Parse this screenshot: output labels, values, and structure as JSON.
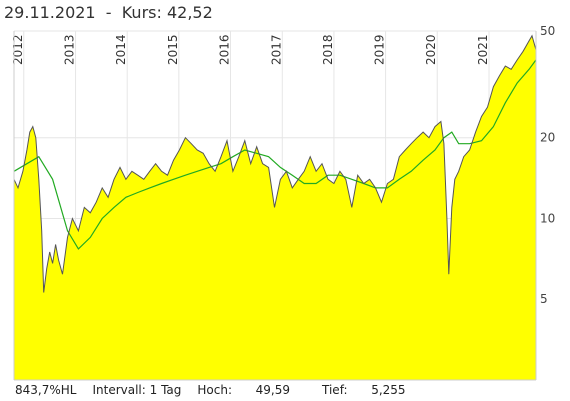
{
  "header": {
    "date": "29.11.2021",
    "separator": "-",
    "kurs_label": "Kurs:",
    "kurs_value": "42,52"
  },
  "footer": {
    "hl": "843,7%HL",
    "intervall": "Intervall: 1 Tag",
    "hoch_label": "Hoch:",
    "hoch_value": "49,59",
    "tief_label": "Tief:",
    "tief_value": "5,255"
  },
  "colors": {
    "area_fill": "#ffff00",
    "price_line": "#555555",
    "moving_average": "#22aa22",
    "grid": "#e6e6e6"
  },
  "chart_data": {
    "type": "area",
    "y_scale": "log",
    "ylim": [
      2.5,
      50
    ],
    "x_range": [
      "2011-10-24",
      "2021-11-29"
    ],
    "year_labels": [
      "2012",
      "2013",
      "2014",
      "2015",
      "2016",
      "2017",
      "2018",
      "2019",
      "2020",
      "2021"
    ],
    "y_ticks": [
      50,
      20,
      10,
      5
    ],
    "y_tick_labels": [
      "50",
      "20",
      "10",
      "5"
    ],
    "grid": true,
    "series": [
      {
        "role": "price",
        "x": [
          "2011-10-24",
          "2011-11-21",
          "2011-12-26",
          "2012-01-23",
          "2012-02-13",
          "2012-03-05",
          "2012-03-26",
          "2012-04-16",
          "2012-05-07",
          "2012-05-21",
          "2012-06-11",
          "2012-07-02",
          "2012-07-23",
          "2012-08-13",
          "2012-09-03",
          "2012-10-01",
          "2012-11-05",
          "2012-12-10",
          "2013-01-21",
          "2013-03-04",
          "2013-04-15",
          "2013-05-27",
          "2013-07-08",
          "2013-08-19",
          "2013-09-30",
          "2013-11-11",
          "2013-12-23",
          "2014-02-03",
          "2014-03-17",
          "2014-04-28",
          "2014-06-09",
          "2014-07-21",
          "2014-09-01",
          "2014-10-13",
          "2014-11-24",
          "2015-01-05",
          "2015-02-16",
          "2015-03-30",
          "2015-05-11",
          "2015-06-22",
          "2015-08-03",
          "2015-09-14",
          "2015-10-26",
          "2015-12-07",
          "2016-01-18",
          "2016-02-29",
          "2016-04-11",
          "2016-05-23",
          "2016-07-04",
          "2016-08-15",
          "2016-09-26",
          "2016-11-07",
          "2016-12-19",
          "2017-01-30",
          "2017-03-13",
          "2017-04-24",
          "2017-06-05",
          "2017-07-17",
          "2017-08-28",
          "2017-10-09",
          "2017-11-20",
          "2018-01-01",
          "2018-02-12",
          "2018-03-26",
          "2018-05-07",
          "2018-06-18",
          "2018-07-30",
          "2018-09-10",
          "2018-10-22",
          "2018-12-03",
          "2019-01-14",
          "2019-02-25",
          "2019-04-08",
          "2019-05-20",
          "2019-07-01",
          "2019-08-12",
          "2019-09-23",
          "2019-11-04",
          "2019-12-16",
          "2020-01-27",
          "2020-02-17",
          "2020-03-09",
          "2020-03-23",
          "2020-04-13",
          "2020-05-04",
          "2020-06-01",
          "2020-07-06",
          "2020-08-17",
          "2020-09-28",
          "2020-11-09",
          "2020-12-21",
          "2021-02-01",
          "2021-03-15",
          "2021-04-26",
          "2021-06-07",
          "2021-07-19",
          "2021-08-30",
          "2021-10-11",
          "2021-11-01",
          "2021-11-29"
        ],
        "values": [
          14,
          13,
          15,
          18,
          21,
          22,
          20,
          14,
          9,
          5.3,
          6.5,
          7.5,
          6.8,
          8,
          7,
          6.2,
          8.5,
          10,
          9,
          11,
          10.5,
          11.5,
          13,
          12,
          14,
          15.5,
          14,
          15,
          14.5,
          14,
          15,
          16,
          15,
          14.5,
          16.5,
          18,
          20,
          19,
          18,
          17.5,
          16,
          15,
          17,
          19.5,
          15,
          17,
          19.5,
          16,
          18.5,
          16,
          15.5,
          11,
          14,
          15,
          13,
          14,
          15,
          17,
          15,
          16,
          14,
          13.5,
          15,
          14,
          11,
          14.5,
          13.5,
          14,
          13,
          11.5,
          13.5,
          14,
          17,
          18,
          19,
          20,
          21,
          20,
          22,
          23,
          19,
          10,
          6.2,
          11,
          14,
          15,
          17,
          18,
          21,
          24,
          26,
          31,
          34,
          37,
          36,
          39,
          42,
          46,
          48,
          42.52
        ]
      },
      {
        "role": "moving_average",
        "x": [
          "2011-10-24",
          "2012-01-23",
          "2012-04-16",
          "2012-07-23",
          "2012-11-05",
          "2013-01-21",
          "2013-04-15",
          "2013-07-08",
          "2013-09-30",
          "2013-12-23",
          "2014-03-17",
          "2014-06-09",
          "2014-09-01",
          "2014-11-24",
          "2015-02-16",
          "2015-05-11",
          "2015-08-03",
          "2015-10-26",
          "2016-01-18",
          "2016-04-11",
          "2016-07-04",
          "2016-09-26",
          "2016-12-19",
          "2017-03-13",
          "2017-06-05",
          "2017-08-28",
          "2017-11-20",
          "2018-02-12",
          "2018-05-07",
          "2018-07-30",
          "2018-10-22",
          "2019-01-14",
          "2019-04-08",
          "2019-07-01",
          "2019-09-23",
          "2019-12-16",
          "2020-02-17",
          "2020-04-13",
          "2020-06-01",
          "2020-08-17",
          "2020-11-09",
          "2021-02-01",
          "2021-04-26",
          "2021-07-19",
          "2021-10-11",
          "2021-11-29"
        ],
        "values": [
          15,
          16,
          17,
          14,
          9,
          7.7,
          8.5,
          10,
          11,
          12,
          12.5,
          13,
          13.5,
          14,
          14.5,
          15,
          15.5,
          16,
          17,
          18,
          17.5,
          17,
          15.5,
          14.5,
          13.5,
          13.5,
          14.5,
          14.5,
          14,
          13.5,
          13,
          13,
          14,
          15,
          16.5,
          18,
          20,
          21,
          19,
          19,
          19.5,
          22,
          27,
          32,
          36,
          39
        ]
      }
    ]
  }
}
